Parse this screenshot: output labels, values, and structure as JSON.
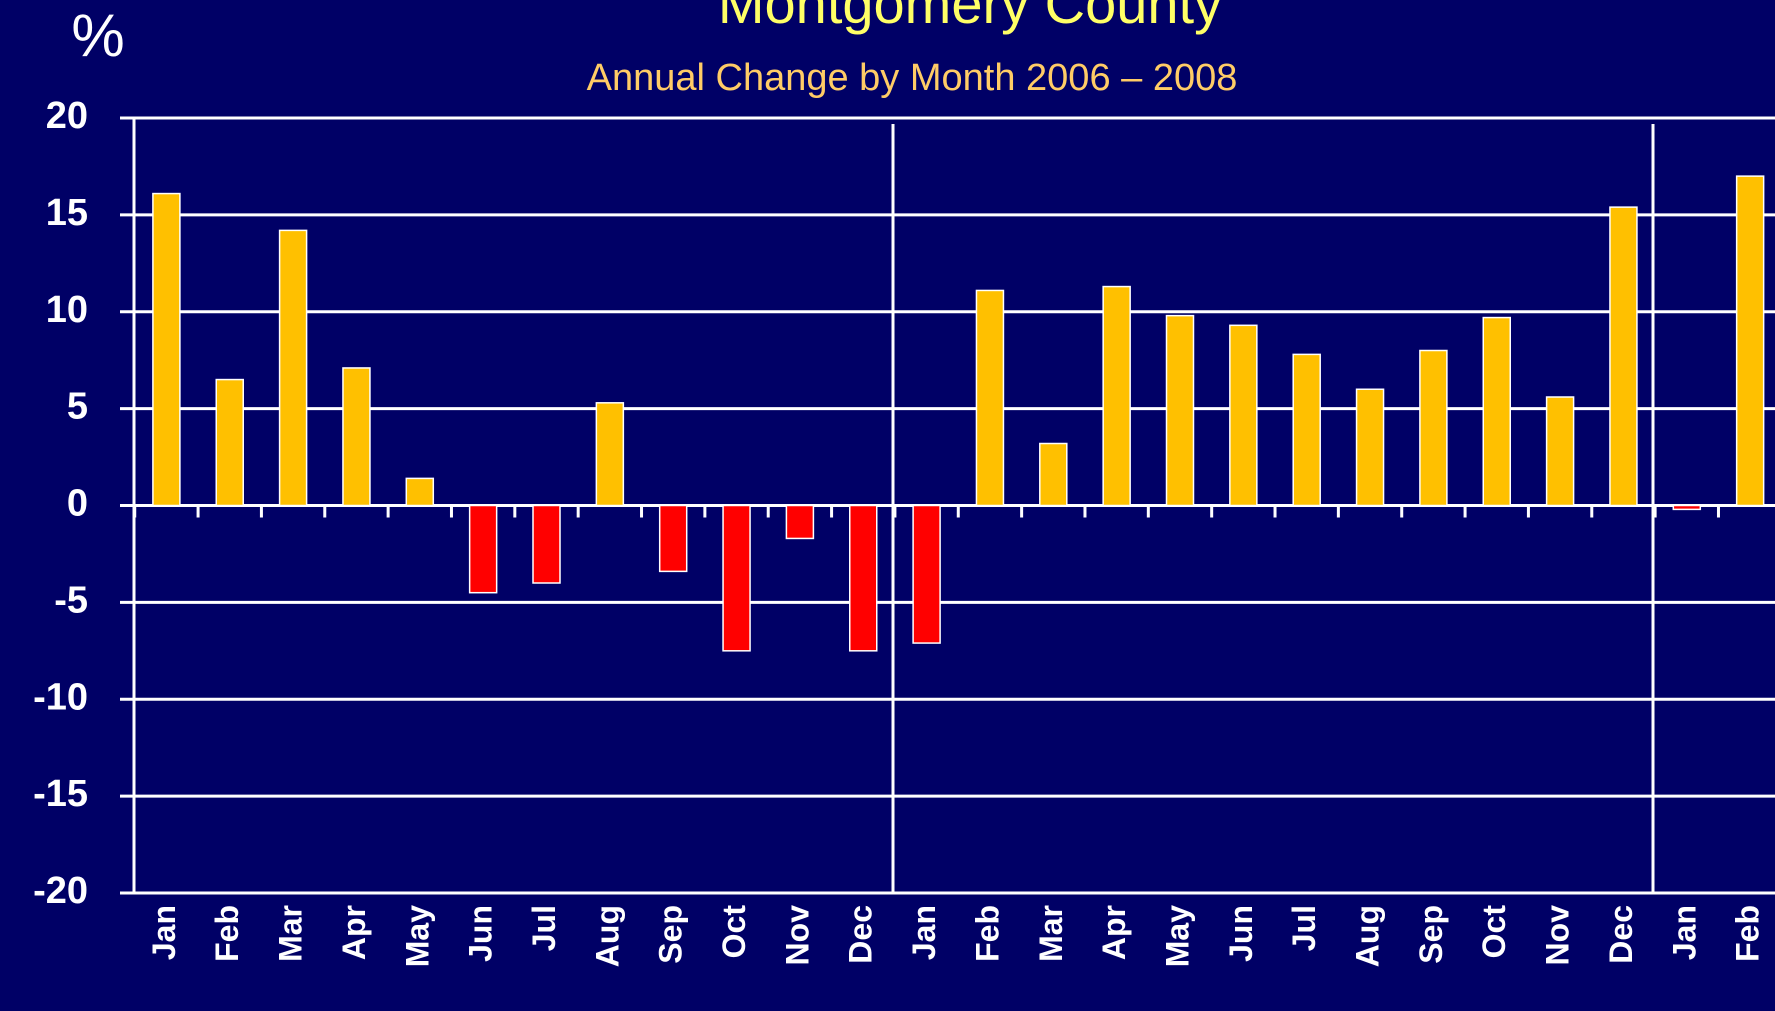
{
  "chart_data": {
    "type": "bar",
    "title": "Montgomery County",
    "subtitle": "Annual Change by Month  2006 – 2008",
    "y_label": "%",
    "categories": [
      "Jan",
      "Feb",
      "Mar",
      "Apr",
      "May",
      "Jun",
      "Jul",
      "Aug",
      "Sep",
      "Oct",
      "Nov",
      "Dec",
      "Jan",
      "Feb",
      "Mar",
      "Apr",
      "May",
      "Jun",
      "Jul",
      "Aug",
      "Sep",
      "Oct",
      "Nov",
      "Dec",
      "Jan",
      "Feb"
    ],
    "values": [
      16.1,
      6.5,
      14.2,
      7.1,
      1.4,
      -4.5,
      -4.0,
      5.3,
      -3.4,
      -7.5,
      -1.7,
      -7.5,
      -7.1,
      11.1,
      3.2,
      11.3,
      9.8,
      9.3,
      7.8,
      6.0,
      8.0,
      9.7,
      5.6,
      15.4,
      -0.2,
      17.0
    ],
    "color": "#ffc000",
    "negative_color": "#ff0000",
    "ylim": [
      -20,
      20
    ],
    "yticks": [
      -20,
      -15,
      -10,
      -5,
      0,
      5,
      10,
      15,
      20
    ],
    "grid": true
  }
}
